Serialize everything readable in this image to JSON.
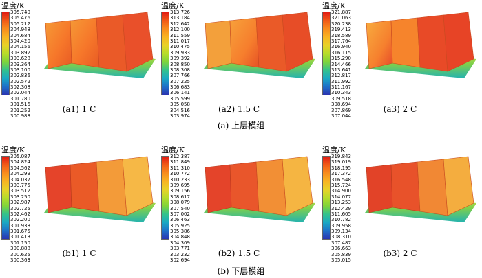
{
  "unit_label": "温度/K",
  "panels": [
    {
      "id": "a1",
      "caption": "(a1) 1 C",
      "ticks": [
        "305.740",
        "305.476",
        "305.212",
        "304.948",
        "304.684",
        "304.420",
        "304.156",
        "303.892",
        "303.628",
        "303.364",
        "303.100",
        "302.836",
        "302.572",
        "302.308",
        "302.044",
        "301.780",
        "301.516",
        "301.252",
        "300.988"
      ]
    },
    {
      "id": "a2",
      "caption": "(a2) 1.5 C",
      "ticks": [
        "313.726",
        "313.184",
        "312.642",
        "312.100",
        "311.559",
        "311.017",
        "310.475",
        "309.933",
        "309.392",
        "308.850",
        "308.308",
        "307.766",
        "307.225",
        "306.683",
        "306.141",
        "305.599",
        "305.058",
        "304.516",
        "303.974"
      ]
    },
    {
      "id": "a3",
      "caption": "(a3) 2 C",
      "ticks": [
        "321.887",
        "321.063",
        "320.238",
        "319.413",
        "318.589",
        "317.764",
        "316.940",
        "316.115",
        "315.290",
        "314.466",
        "313.641",
        "312.817",
        "311.992",
        "311.167",
        "310.343",
        "309.518",
        "308.694",
        "307.869",
        "307.044"
      ]
    },
    {
      "id": "b1",
      "caption": "(b1) 1 C",
      "ticks": [
        "305.087",
        "304.824",
        "304.562",
        "304.299",
        "304.037",
        "303.775",
        "303.512",
        "303.250",
        "302.987",
        "302.725",
        "302.462",
        "302.200",
        "301.938",
        "301.675",
        "301.413",
        "301.150",
        "300.888",
        "300.625",
        "300.363"
      ]
    },
    {
      "id": "b2",
      "caption": "(b2) 1.5 C",
      "ticks": [
        "312.387",
        "311.849",
        "311.310",
        "310.772",
        "310.233",
        "309.695",
        "309.156",
        "308.617",
        "308.079",
        "307.540",
        "307.002",
        "306.463",
        "305.925",
        "305.386",
        "304.848",
        "304.309",
        "303.771",
        "303.232",
        "302.694"
      ]
    },
    {
      "id": "b3",
      "caption": "(b3) 2 C",
      "ticks": [
        "319.843",
        "319.019",
        "318.195",
        "317.372",
        "316.548",
        "315.724",
        "314.900",
        "314.077",
        "313.253",
        "312.429",
        "311.605",
        "310.782",
        "309.958",
        "309.134",
        "308.310",
        "307.487",
        "306.663",
        "305.839",
        "305.015"
      ]
    }
  ],
  "group_titles": {
    "a": "(a) 上层模组",
    "b": "(b) 下层模组"
  }
}
